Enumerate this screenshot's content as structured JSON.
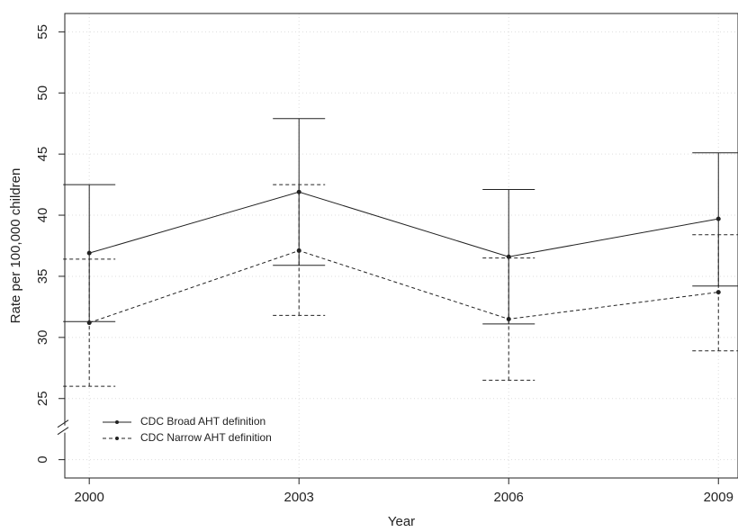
{
  "chart_data": {
    "type": "errorbar",
    "x_label": "Year",
    "y_label": "Rate per 100,000 children",
    "x": [
      2000,
      2003,
      2006,
      2009
    ],
    "xlim": [
      1999.65,
      2009.28
    ],
    "xticks": [
      2000,
      2003,
      2006,
      2009
    ],
    "ylim": [
      -1.5,
      56.5
    ],
    "yticks": [
      0,
      25,
      30,
      35,
      40,
      45,
      50,
      55
    ],
    "axis_break": true,
    "grid": true,
    "legend": "lower left",
    "series": [
      {
        "name": "CDC Broad AHT definition",
        "color": "#222222",
        "dash": "solid",
        "values": [
          36.9,
          41.9,
          36.6,
          39.7
        ],
        "lower": [
          31.3,
          35.9,
          31.1,
          34.2
        ],
        "upper": [
          42.5,
          47.9,
          42.1,
          45.1
        ]
      },
      {
        "name": "CDC Narrow AHT definition",
        "color": "#222222",
        "dash": "dashed",
        "values": [
          31.2,
          37.1,
          31.5,
          33.7
        ],
        "lower": [
          26.0,
          31.8,
          26.5,
          28.9
        ],
        "upper": [
          36.4,
          42.5,
          36.5,
          38.4
        ]
      }
    ]
  }
}
